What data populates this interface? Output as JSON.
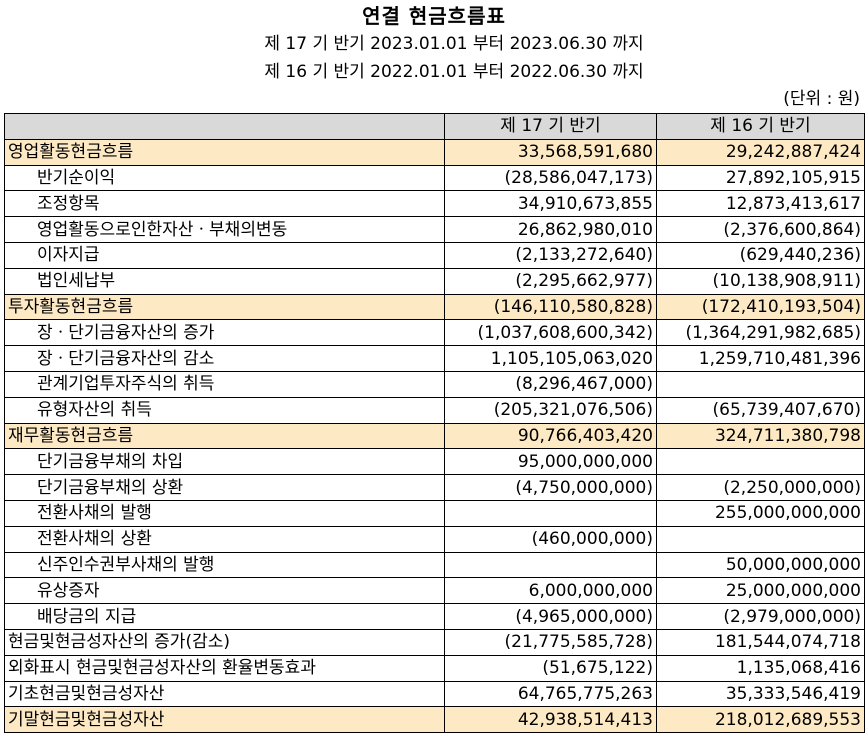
{
  "header": {
    "title": "연결 현금흐름표",
    "period_current": "제 17 기 반기 2023.01.01 부터 2023.06.30 까지",
    "period_prior": "제 16 기 반기 2022.01.01 부터 2022.06.30 까지",
    "unit": "(단위 : 원)"
  },
  "table": {
    "col_label": "",
    "col_current": "제 17 기 반기",
    "col_prior": "제 16 기 반기",
    "rows": [
      {
        "label": "영업활동현금흐름",
        "current": "33,568,591,680",
        "prior": "29,242,887,424"
      },
      {
        "label": "반기순이익",
        "current": "(28,586,047,173)",
        "prior": "27,892,105,915"
      },
      {
        "label": "조정항목",
        "current": "34,910,673,855",
        "prior": "12,873,413,617"
      },
      {
        "label": "영업활동으로인한자산ㆍ부채의변동",
        "current": "26,862,980,010",
        "prior": "(2,376,600,864)"
      },
      {
        "label": "이자지급",
        "current": "(2,133,272,640)",
        "prior": "(629,440,236)"
      },
      {
        "label": "법인세납부",
        "current": "(2,295,662,977)",
        "prior": "(10,138,908,911)"
      },
      {
        "label": "투자활동현금흐름",
        "current": "(146,110,580,828)",
        "prior": "(172,410,193,504)"
      },
      {
        "label": "장ㆍ단기금융자산의 증가",
        "current": "(1,037,608,600,342)",
        "prior": "(1,364,291,982,685)"
      },
      {
        "label": "장ㆍ단기금융자산의 감소",
        "current": "1,105,105,063,020",
        "prior": "1,259,710,481,396"
      },
      {
        "label": "관계기업투자주식의 취득",
        "current": "(8,296,467,000)",
        "prior": ""
      },
      {
        "label": "유형자산의 취득",
        "current": "(205,321,076,506)",
        "prior": "(65,739,407,670)"
      },
      {
        "label": "재무활동현금흐름",
        "current": "90,766,403,420",
        "prior": "324,711,380,798"
      },
      {
        "label": "단기금융부채의 차입",
        "current": "95,000,000,000",
        "prior": ""
      },
      {
        "label": "단기금융부채의 상환",
        "current": "(4,750,000,000)",
        "prior": "(2,250,000,000)"
      },
      {
        "label": "전환사채의 발행",
        "current": "",
        "prior": "255,000,000,000"
      },
      {
        "label": "전환사채의 상환",
        "current": "(460,000,000)",
        "prior": ""
      },
      {
        "label": "신주인수권부사채의 발행",
        "current": "",
        "prior": "50,000,000,000"
      },
      {
        "label": "유상증자",
        "current": "6,000,000,000",
        "prior": "25,000,000,000"
      },
      {
        "label": "배당금의 지급",
        "current": "(4,965,000,000)",
        "prior": "(2,979,000,000)"
      },
      {
        "label": "현금및현금성자산의 증가(감소)",
        "current": "(21,775,585,728)",
        "prior": "181,544,074,718"
      },
      {
        "label": "외화표시 현금및현금성자산의 환율변동효과",
        "current": "(51,675,122)",
        "prior": "1,135,068,416"
      },
      {
        "label": "기초현금및현금성자산",
        "current": "64,765,775,263",
        "prior": "35,333,546,419"
      },
      {
        "label": "기말현금및현금성자산",
        "current": "42,938,514,413",
        "prior": "218,012,689,553"
      }
    ]
  },
  "colors": {
    "header_bg": "#d9d9d9",
    "highlight_bg": "#fde9c4",
    "border": "#000000"
  }
}
